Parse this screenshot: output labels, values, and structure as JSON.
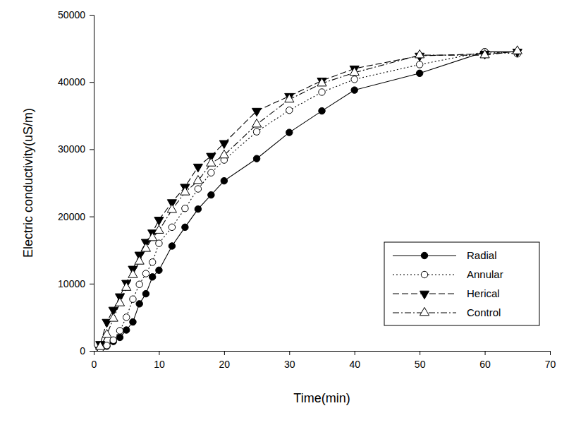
{
  "chart_data": {
    "type": "line",
    "x_label": "Time(min)",
    "y_label": "Electric conductivity(uS/m)",
    "x": [
      0,
      1,
      2,
      3,
      4,
      5,
      6,
      7,
      8,
      9,
      10,
      12,
      14,
      16,
      18,
      20,
      25,
      30,
      35,
      40,
      50,
      60,
      65
    ],
    "xlim": [
      0,
      70
    ],
    "xticks": [
      0,
      10,
      20,
      30,
      40,
      50,
      60,
      70
    ],
    "ylim": [
      0,
      50000
    ],
    "yticks": [
      0,
      10000,
      20000,
      30000,
      40000,
      50000
    ],
    "grid": false,
    "legend": "lower-right",
    "series": [
      {
        "name": "Radial",
        "color": "#000000",
        "marker": "circle",
        "line_style": "solid",
        "values": [
          100,
          300,
          700,
          1400,
          2000,
          3100,
          4300,
          7000,
          8500,
          11000,
          12000,
          15600,
          18400,
          21100,
          23200,
          25300,
          28600,
          32500,
          35700,
          38800,
          41300,
          44500,
          44500
        ]
      },
      {
        "name": "Annular",
        "color": "#000000",
        "marker": "circle-open",
        "line_style": "dotted",
        "values": [
          100,
          300,
          800,
          1600,
          3000,
          5000,
          7700,
          9900,
          11500,
          13200,
          16000,
          18400,
          21200,
          24100,
          26500,
          28400,
          32600,
          35800,
          38500,
          40400,
          42600,
          44500,
          44200
        ]
      },
      {
        "name": "Herical",
        "color": "#000000",
        "marker": "triangle-down",
        "line_style": "dashed",
        "values": [
          100,
          1000,
          4300,
          6100,
          8100,
          10100,
          12200,
          14300,
          16200,
          17600,
          19500,
          22100,
          24400,
          27400,
          29000,
          30900,
          35700,
          37900,
          40200,
          42000,
          43900,
          44200,
          44500
        ]
      },
      {
        "name": "Control",
        "color": "#000000",
        "marker": "triangle-up-open",
        "line_style": "dashdot",
        "values": [
          100,
          600,
          2400,
          4800,
          7100,
          9400,
          11300,
          13300,
          15200,
          16800,
          17900,
          21000,
          23600,
          25300,
          27900,
          29100,
          33700,
          37400,
          39800,
          41400,
          44000,
          44000,
          44600
        ]
      }
    ]
  }
}
